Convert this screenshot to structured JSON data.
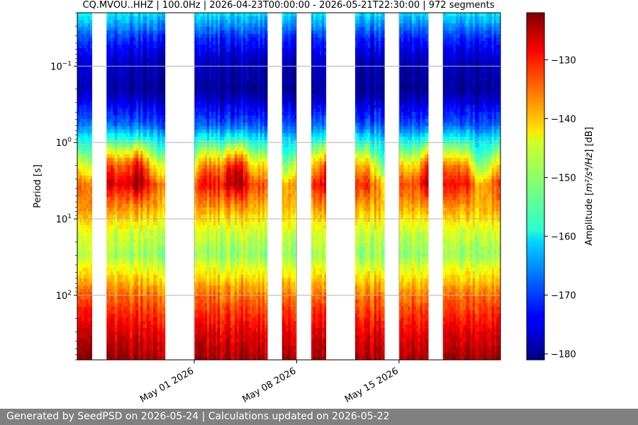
{
  "footer": {
    "text": "Generated by SeedPSD on 2026-05-24 | Calculations updated on 2026-05-22"
  },
  "chart_data": {
    "type": "heatmap",
    "title": "CQ.MVOU..HHZ | 100.0Hz | 2026-04-23T00:00:00 - 2026-05-21T22:30:00 | 972 segments",
    "ylabel": "Period [s]",
    "xlabel": "",
    "y_scale": "log",
    "y_inverted": true,
    "ylim": [
      0.02,
      700
    ],
    "xlim": [
      "2026-04-23T00:00",
      "2026-05-21T22:30"
    ],
    "y_ticks": [
      {
        "value": 0.1,
        "base": "10",
        "exp": "−1"
      },
      {
        "value": 1,
        "base": "10",
        "exp": "0"
      },
      {
        "value": 10,
        "base": "10",
        "exp": "1"
      },
      {
        "value": 100,
        "base": "10",
        "exp": "2"
      }
    ],
    "x_ticks": [
      {
        "date": "2026-05-01",
        "label": "May 01 2026"
      },
      {
        "date": "2026-05-08",
        "label": "May 08 2026"
      },
      {
        "date": "2026-05-15",
        "label": "May 15 2026"
      }
    ],
    "grid": true,
    "colorbar": {
      "label_main": "Amplitude [",
      "label_unit": "m²/s⁴/Hz",
      "label_end": "] [dB]",
      "colormap": "jet",
      "vmin": -181,
      "vmax": -122,
      "ticks": [
        -130,
        -140,
        -150,
        -160,
        -170,
        -180
      ]
    },
    "data_intervals": [
      [
        "2026-04-23T00:00",
        "2026-04-24T00:00"
      ],
      [
        "2026-04-25T00:00",
        "2026-04-29T00:00"
      ],
      [
        "2026-05-01T00:00",
        "2026-05-06T00:00"
      ],
      [
        "2026-05-07T00:00",
        "2026-05-08T00:00"
      ],
      [
        "2026-05-09T00:00",
        "2026-05-10T00:00"
      ],
      [
        "2026-05-12T00:00",
        "2026-05-14T00:00"
      ],
      [
        "2026-05-15T00:00",
        "2026-05-17T00:00"
      ],
      [
        "2026-05-18T00:00",
        "2026-05-21T22:30"
      ]
    ],
    "typical_profile": [
      {
        "period": 0.02,
        "db": -160
      },
      {
        "period": 0.03,
        "db": -166
      },
      {
        "period": 0.045,
        "db": -172
      },
      {
        "period": 0.08,
        "db": -177
      },
      {
        "period": 0.2,
        "db": -180
      },
      {
        "period": 0.3,
        "db": -176
      },
      {
        "period": 0.6,
        "db": -168
      },
      {
        "period": 0.85,
        "db": -160
      },
      {
        "period": 1.2,
        "db": -152
      },
      {
        "period": 2.0,
        "db": -140
      },
      {
        "period": 3.5,
        "db": -132
      },
      {
        "period": 8,
        "db": -140
      },
      {
        "period": 15,
        "db": -147
      },
      {
        "period": 30,
        "db": -150
      },
      {
        "period": 100,
        "db": -136
      },
      {
        "period": 300,
        "db": -128
      },
      {
        "period": 700,
        "db": -124
      }
    ]
  }
}
